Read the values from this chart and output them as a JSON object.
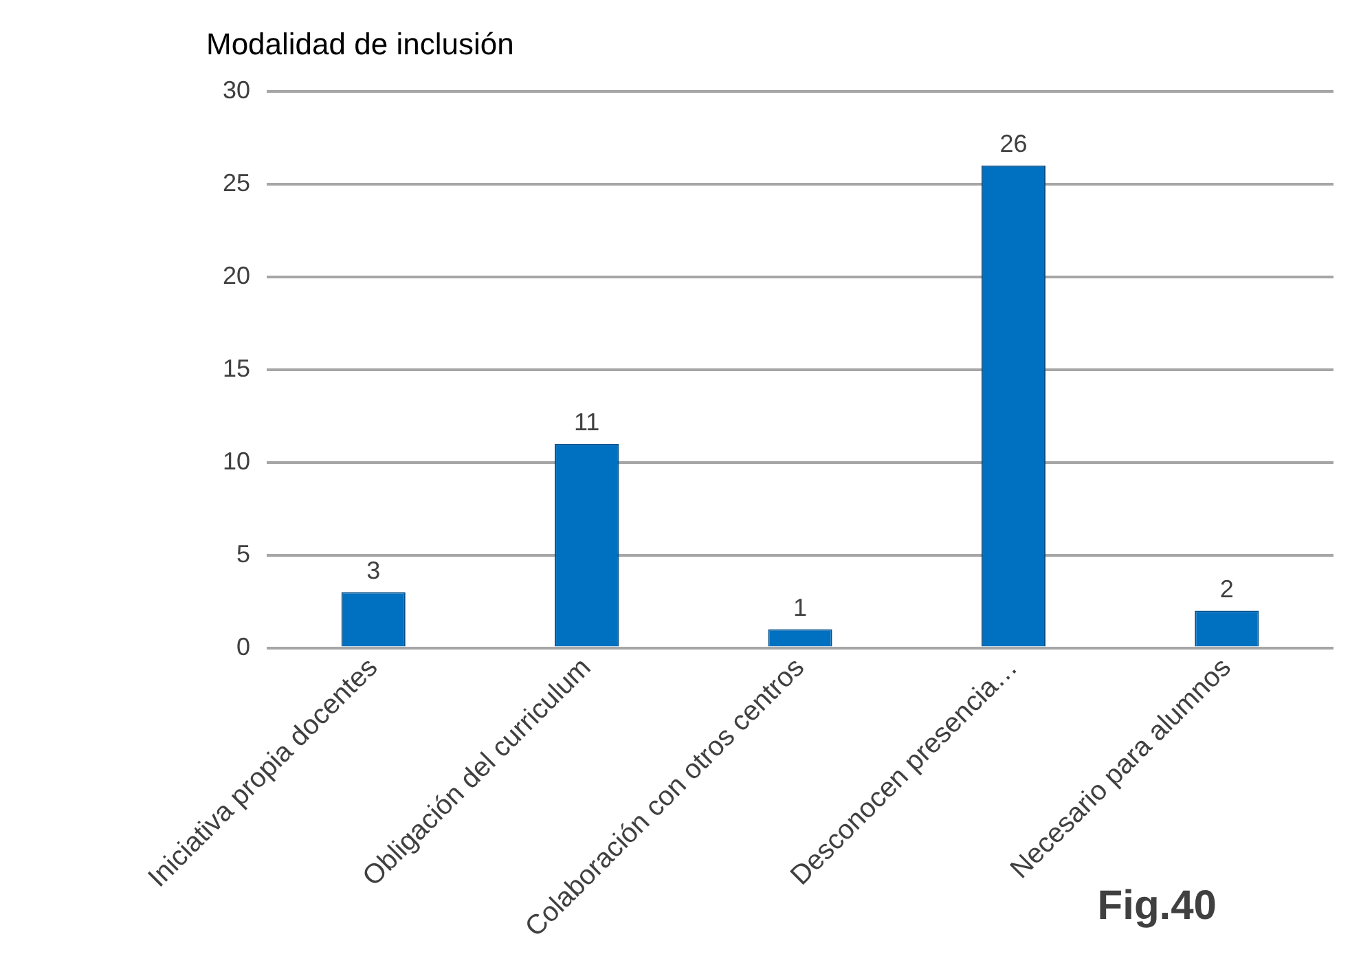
{
  "chart_data": {
    "type": "bar",
    "title": "Modalidad de inclusión",
    "categories": [
      "Iniciativa propia docentes",
      "Obligación del curriculum",
      "Colaboración con otros centros",
      "Desconocen presencia…",
      "Necesario para alumnos"
    ],
    "values": [
      3,
      11,
      1,
      26,
      2
    ],
    "color": "#0070c0",
    "ylim": [
      0,
      30
    ],
    "yticks": [
      0,
      5,
      10,
      15,
      20,
      25,
      30
    ],
    "grid": "y",
    "data_labels": true,
    "legend": false,
    "annotations": [
      "Fig.40"
    ]
  }
}
